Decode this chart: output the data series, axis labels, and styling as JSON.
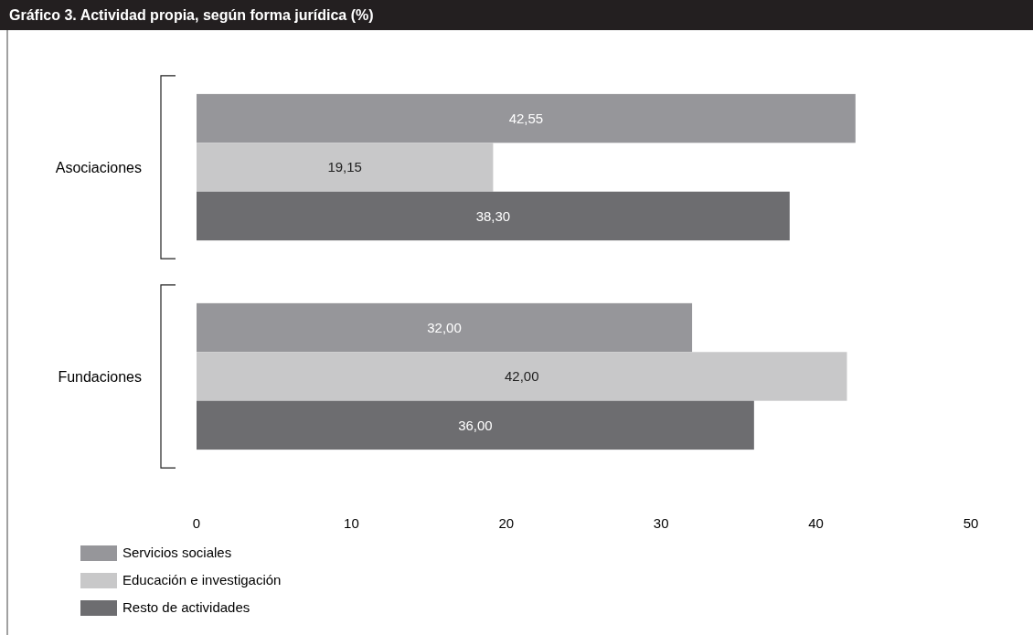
{
  "chart_data": {
    "type": "bar",
    "orientation": "horizontal",
    "title": "Gráfico 3. Actividad propia, según forma jurídica (%)",
    "categories": [
      "Asociaciones",
      "Fundaciones"
    ],
    "series": [
      {
        "name": "Servicios sociales",
        "color": "#96969a",
        "values": [
          42.55,
          32.0
        ],
        "value_labels": [
          "42,55",
          "32,00"
        ]
      },
      {
        "name": "Educación e investigación",
        "color": "#c8c8c9",
        "values": [
          19.15,
          42.0
        ],
        "value_labels": [
          "19,15",
          "42,00"
        ]
      },
      {
        "name": "Resto de actividades",
        "color": "#6d6d70",
        "values": [
          38.3,
          36.0
        ],
        "value_labels": [
          "38,30",
          "36,00"
        ]
      }
    ],
    "xlim": [
      0,
      50
    ],
    "xticks": [
      0,
      10,
      20,
      30,
      40,
      50
    ],
    "legend": "bottom left"
  }
}
